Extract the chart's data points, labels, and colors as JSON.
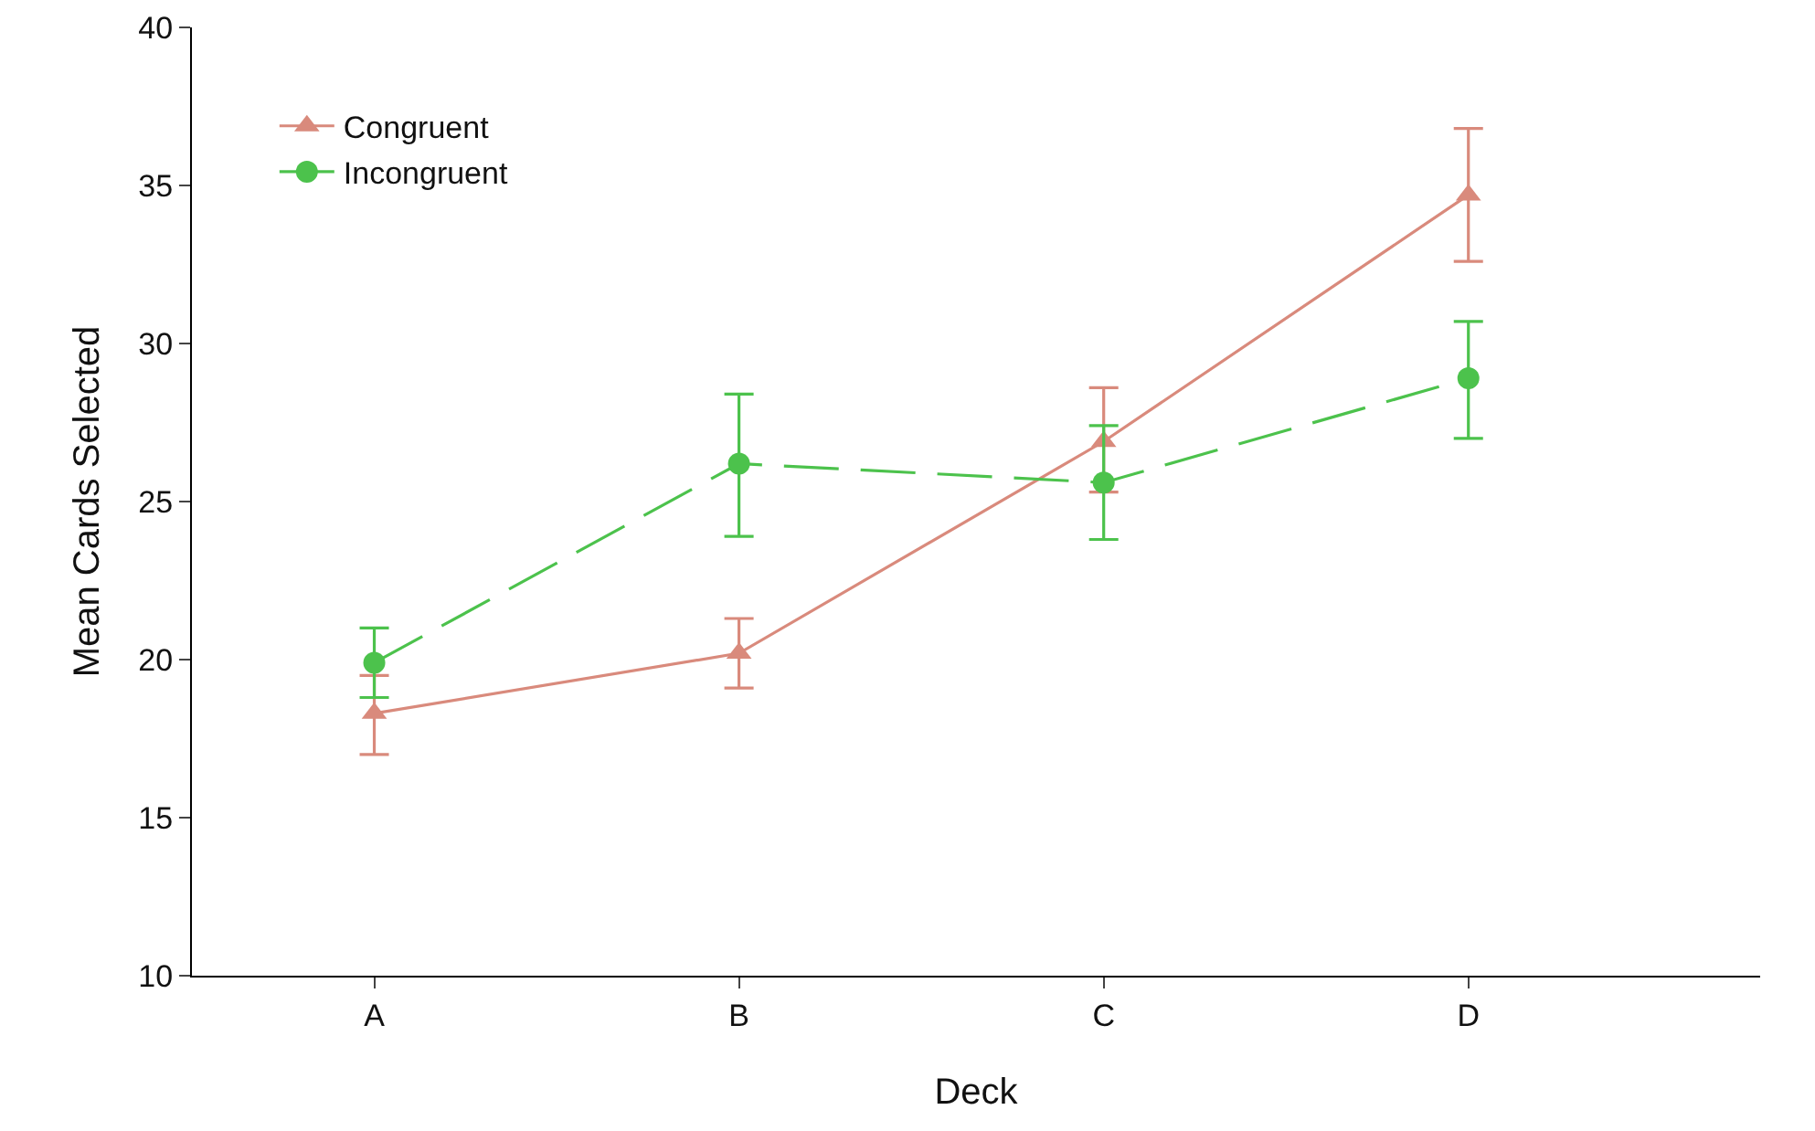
{
  "chart_data": {
    "type": "line",
    "xlabel": "Deck",
    "ylabel": "Mean Cards Selected",
    "categories": [
      "A",
      "B",
      "C",
      "D"
    ],
    "series": [
      {
        "name": "Congruent",
        "color": "#d98a7c",
        "marker": "triangle",
        "line_style": "solid",
        "values": [
          18.3,
          20.2,
          26.9,
          34.7
        ],
        "errors": [
          [
            17.0,
            19.5
          ],
          [
            19.1,
            21.3
          ],
          [
            25.3,
            28.6
          ],
          [
            32.6,
            36.8
          ]
        ]
      },
      {
        "name": "Incongruent",
        "color": "#4cc24c",
        "marker": "circle",
        "line_style": "dashed",
        "values": [
          19.9,
          26.2,
          25.6,
          28.9
        ],
        "errors": [
          [
            18.8,
            21.0
          ],
          [
            23.9,
            28.4
          ],
          [
            23.8,
            27.4
          ],
          [
            27.0,
            30.7
          ]
        ]
      }
    ],
    "ylim": [
      10,
      40
    ],
    "yticks": [
      10,
      15,
      20,
      25,
      30,
      35,
      40
    ],
    "grid": false,
    "legend": "top left"
  }
}
